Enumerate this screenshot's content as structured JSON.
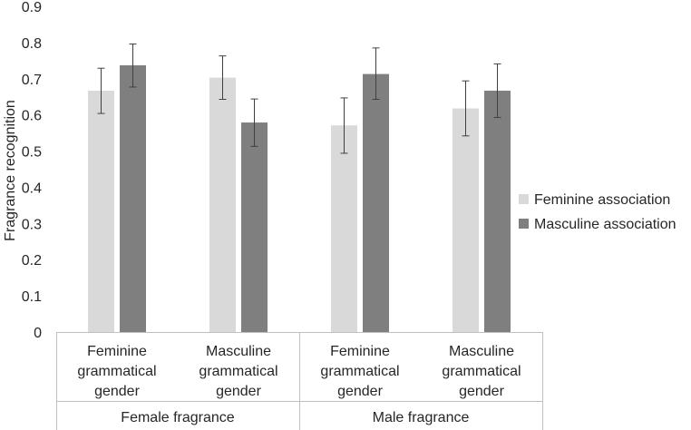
{
  "chart_data": {
    "type": "bar",
    "title": "",
    "ylabel": "Fragrance recognition",
    "ylim": [
      0,
      0.9
    ],
    "yticks": [
      "0",
      "0.1",
      "0.2",
      "0.3",
      "0.4",
      "0.5",
      "0.6",
      "0.7",
      "0.8",
      "0.9"
    ],
    "grid": false,
    "legend_position": "right",
    "groups": [
      {
        "label": "Female fragrance",
        "categories": [
          "Feminine\ngrammatical\ngender",
          "Masculine\ngrammatical\ngender"
        ]
      },
      {
        "label": "Male fragrance",
        "categories": [
          "Feminine\ngrammatical\ngender",
          "Masculine\ngrammatical\ngender"
        ]
      }
    ],
    "categories": [
      "Female fragrance / Feminine grammatical gender",
      "Female fragrance / Masculine grammatical gender",
      "Male fragrance / Feminine grammatical gender",
      "Male fragrance / Masculine grammatical gender"
    ],
    "series": [
      {
        "name": "Feminine association",
        "color": "#d9d9d9",
        "values": [
          0.667,
          0.703,
          0.571,
          0.618
        ],
        "error_low": [
          0.604,
          0.643,
          0.494,
          0.542
        ],
        "error_high": [
          0.729,
          0.763,
          0.647,
          0.694
        ]
      },
      {
        "name": "Masculine association",
        "color": "#7f7f7f",
        "values": [
          0.737,
          0.579,
          0.713,
          0.667
        ],
        "error_low": [
          0.677,
          0.513,
          0.643,
          0.593
        ],
        "error_high": [
          0.796,
          0.644,
          0.785,
          0.741
        ]
      }
    ]
  }
}
